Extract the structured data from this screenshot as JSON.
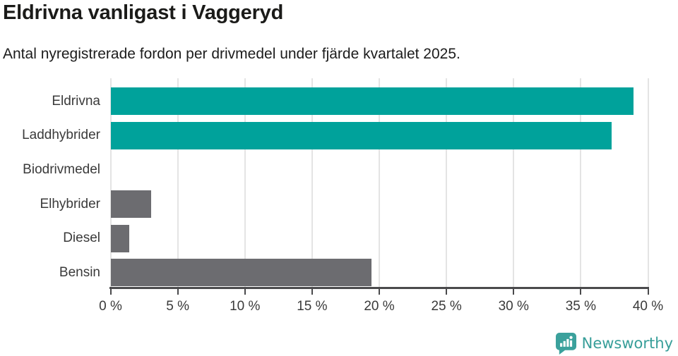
{
  "header": {
    "title": "Eldrivna vanligast i Vaggeryd",
    "subtitle": "Antal nyregistrerade fordon per drivmedel under fjärde kvartalet 2025."
  },
  "chart_data": {
    "type": "bar",
    "orientation": "horizontal",
    "title": "Eldrivna vanligast i Vaggeryd",
    "subtitle": "Antal nyregistrerade fordon per drivmedel under fjärde kvartalet 2025.",
    "categories": [
      "Eldrivna",
      "Laddhybrider",
      "Biodrivmedel",
      "Elhybrider",
      "Diesel",
      "Bensin"
    ],
    "values": [
      38.9,
      37.3,
      0,
      3.0,
      1.4,
      19.4
    ],
    "unit": "%",
    "bar_colors": [
      "#00a29b",
      "#00a29b",
      "#6c6c70",
      "#6c6c70",
      "#6c6c70",
      "#6c6c70"
    ],
    "xlabel": "",
    "ylabel": "",
    "xlim": [
      0,
      40
    ],
    "x_ticks": [
      0,
      5,
      10,
      15,
      20,
      25,
      30,
      35,
      40
    ],
    "x_tick_labels": [
      "0 %",
      "5 %",
      "10 %",
      "15 %",
      "20 %",
      "25 %",
      "30 %",
      "35 %",
      "40 %"
    ],
    "grid": true,
    "legend": "none"
  },
  "colors": {
    "accent_teal": "#00a29b",
    "neutral_gray": "#6c6c70",
    "gridline": "#e4e4e4",
    "axis": "#4a4a4c",
    "text_dark": "#1b1b19",
    "label_gray": "#3a3a3a",
    "logo_teal": "#3ba19c"
  },
  "footer": {
    "brand": "Newsworthy"
  }
}
